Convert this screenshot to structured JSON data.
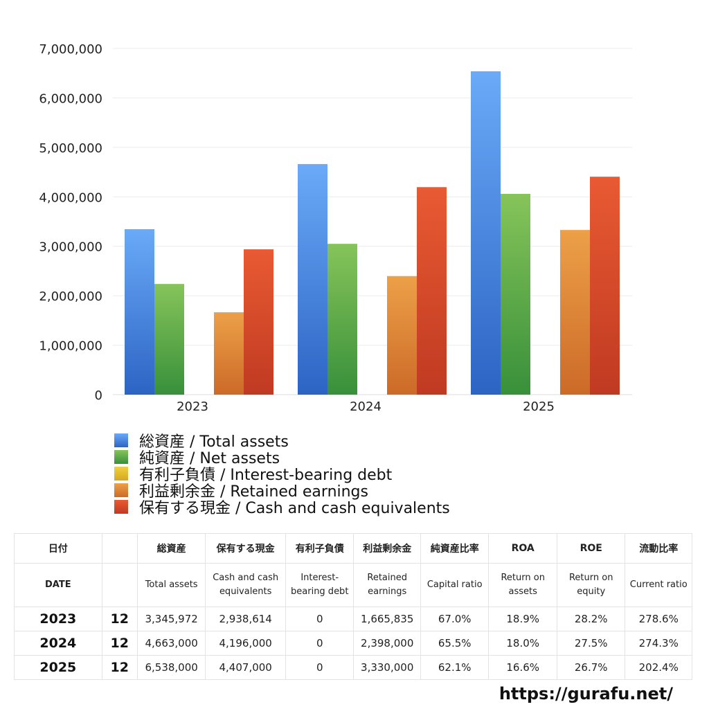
{
  "chart_data": {
    "type": "bar",
    "categories": [
      "2023",
      "2024",
      "2025"
    ],
    "ylim": [
      0,
      7000000
    ],
    "yticks": [
      0,
      1000000,
      2000000,
      3000000,
      4000000,
      5000000,
      6000000,
      7000000
    ],
    "ytick_labels": [
      "0",
      "1,000,000",
      "2,000,000",
      "3,000,000",
      "4,000,000",
      "5,000,000",
      "6,000,000",
      "7,000,000"
    ],
    "grid": true,
    "legend_position": "bottom",
    "series": [
      {
        "name": "総資産 / Total assets",
        "values": [
          3345972,
          4663000,
          6538000
        ],
        "color": "#4a8ae8",
        "color_top": "#6aaaf8",
        "color_bottom": "#2c64c4"
      },
      {
        "name": "純資産 / Net assets",
        "values": [
          2238000,
          3050000,
          4060000
        ],
        "color": "#5aa845",
        "color_top": "#86c45a",
        "color_bottom": "#38903a"
      },
      {
        "name": "有利子負債 / Interest-bearing debt",
        "values": [
          0,
          0,
          0
        ],
        "color": "#e8c030",
        "color_top": "#f0d040",
        "color_bottom": "#d8a820"
      },
      {
        "name": "利益剰余金 / Retained earnings",
        "values": [
          1665835,
          2398000,
          3330000
        ],
        "color": "#e0893a",
        "color_top": "#eda048",
        "color_bottom": "#cc6a28"
      },
      {
        "name": "保有する現金 /  Cash and cash equivalents",
        "values": [
          2938614,
          4196000,
          4407000
        ],
        "color": "#d84a2e",
        "color_top": "#e85a32",
        "color_bottom": "#c03a22"
      }
    ]
  },
  "table": {
    "header_jp": [
      "日付",
      "",
      "総資産",
      "保有する現金",
      "有利子負債",
      "利益剰余金",
      "純資産比率",
      "ROA",
      "ROE",
      "流動比率"
    ],
    "header_en": [
      "DATE",
      "",
      "Total assets",
      "Cash and cash equivalents",
      "Interest-bearing debt",
      "Retained earnings",
      "Capital ratio",
      "Return on assets",
      "Return on equity",
      "Current ratio"
    ],
    "rows": [
      [
        "2023",
        "12",
        "3,345,972",
        "2,938,614",
        "0",
        "1,665,835",
        "67.0%",
        "18.9%",
        "28.2%",
        "278.6%"
      ],
      [
        "2024",
        "12",
        "4,663,000",
        "4,196,000",
        "0",
        "2,398,000",
        "65.5%",
        "18.0%",
        "27.5%",
        "274.3%"
      ],
      [
        "2025",
        "12",
        "6,538,000",
        "4,407,000",
        "0",
        "3,330,000",
        "62.1%",
        "16.6%",
        "26.7%",
        "202.4%"
      ]
    ]
  },
  "site_url": "https://gurafu.net/"
}
